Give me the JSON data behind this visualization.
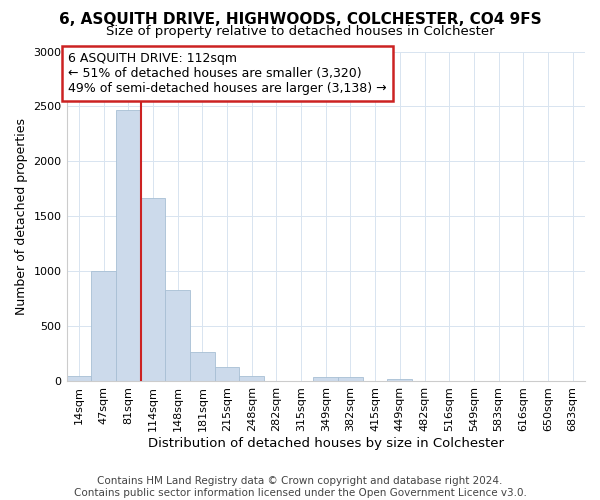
{
  "title": "6, ASQUITH DRIVE, HIGHWOODS, COLCHESTER, CO4 9FS",
  "subtitle": "Size of property relative to detached houses in Colchester",
  "xlabel": "Distribution of detached houses by size in Colchester",
  "ylabel": "Number of detached properties",
  "bar_labels": [
    "14sqm",
    "47sqm",
    "81sqm",
    "114sqm",
    "148sqm",
    "181sqm",
    "215sqm",
    "248sqm",
    "282sqm",
    "315sqm",
    "349sqm",
    "382sqm",
    "415sqm",
    "449sqm",
    "482sqm",
    "516sqm",
    "549sqm",
    "583sqm",
    "616sqm",
    "650sqm",
    "683sqm"
  ],
  "bar_values": [
    50,
    1000,
    2470,
    1670,
    830,
    270,
    130,
    50,
    0,
    0,
    40,
    40,
    0,
    20,
    0,
    0,
    0,
    0,
    0,
    0,
    0
  ],
  "bar_color": "#ccdaeb",
  "bar_edgecolor": "#a8bfd4",
  "vline_x": 2.5,
  "vline_color": "#cc2222",
  "annotation_text": "6 ASQUITH DRIVE: 112sqm\n← 51% of detached houses are smaller (3,320)\n49% of semi-detached houses are larger (3,138) →",
  "annotation_box_color": "#ffffff",
  "annotation_box_edgecolor": "#cc2222",
  "ylim": [
    0,
    3000
  ],
  "yticks": [
    0,
    500,
    1000,
    1500,
    2000,
    2500,
    3000
  ],
  "bg_color": "#ffffff",
  "grid_color": "#d8e4f0",
  "footnote": "Contains HM Land Registry data © Crown copyright and database right 2024.\nContains public sector information licensed under the Open Government Licence v3.0.",
  "title_fontsize": 11,
  "subtitle_fontsize": 9.5,
  "xlabel_fontsize": 9.5,
  "ylabel_fontsize": 9,
  "tick_fontsize": 8,
  "annotation_fontsize": 9,
  "footnote_fontsize": 7.5
}
